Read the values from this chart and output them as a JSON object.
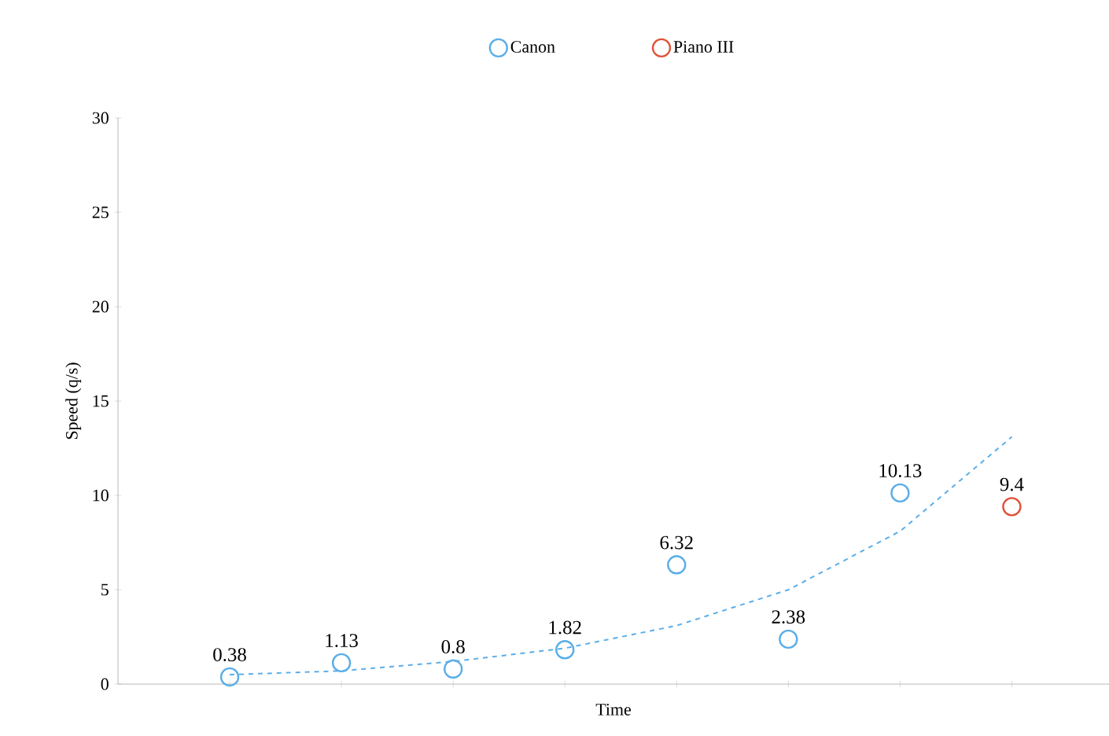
{
  "chart_data": {
    "type": "scatter",
    "xlabel": "Time",
    "ylabel": "Speed (q/s)",
    "categories": [
      null,
      null,
      null,
      null,
      null,
      null,
      null,
      null
    ],
    "ylim": [
      0,
      30
    ],
    "yticks": [
      0,
      5,
      10,
      15,
      20,
      25,
      30
    ],
    "marker": "circle",
    "legend": "top",
    "series": [
      {
        "name": "Canon",
        "color": "#5aaee8",
        "values": [
          0.38,
          1.13,
          0.8,
          1.82,
          6.32,
          2.38,
          10.13,
          null
        ],
        "value_labels": [
          "0.38",
          "1.13",
          "0.8",
          "1.82",
          "6.32",
          "2.38",
          "10.13",
          null
        ]
      },
      {
        "name": "Piano III",
        "color": "#e0533a",
        "values": [
          null,
          null,
          null,
          null,
          null,
          null,
          null,
          9.4
        ],
        "value_labels": [
          null,
          null,
          null,
          null,
          null,
          null,
          null,
          "9.4"
        ]
      },
      {
        "type": "line",
        "marker": "none",
        "line_style": "dashed",
        "color": "#5aaee8",
        "values": [
          0.5,
          0.7,
          1.2,
          1.9,
          3.1,
          5,
          8.1,
          13.1
        ]
      }
    ]
  }
}
